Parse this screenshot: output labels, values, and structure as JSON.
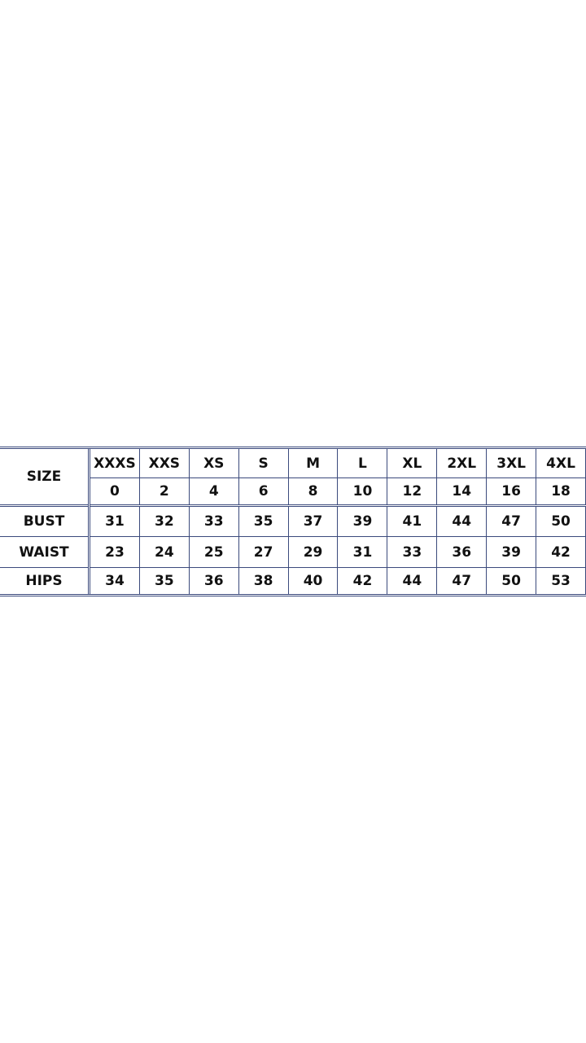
{
  "size_chart": {
    "size_label": "SIZE",
    "letter_sizes": [
      "XXXS",
      "XXS",
      "XS",
      "S",
      "M",
      "L",
      "XL",
      "2XL",
      "3XL",
      "4XL"
    ],
    "numeric_sizes": [
      "0",
      "2",
      "4",
      "6",
      "8",
      "10",
      "12",
      "14",
      "16",
      "18"
    ],
    "rows": [
      {
        "label": "BUST",
        "values": [
          "31",
          "32",
          "33",
          "35",
          "37",
          "39",
          "41",
          "44",
          "47",
          "50"
        ]
      },
      {
        "label": "WAIST",
        "values": [
          "23",
          "24",
          "25",
          "27",
          "29",
          "31",
          "33",
          "36",
          "39",
          "42"
        ]
      },
      {
        "label": "HIPS",
        "values": [
          "34",
          "35",
          "36",
          "38",
          "40",
          "42",
          "44",
          "47",
          "50",
          "53"
        ]
      }
    ],
    "border_color": "#3b4a7c"
  }
}
